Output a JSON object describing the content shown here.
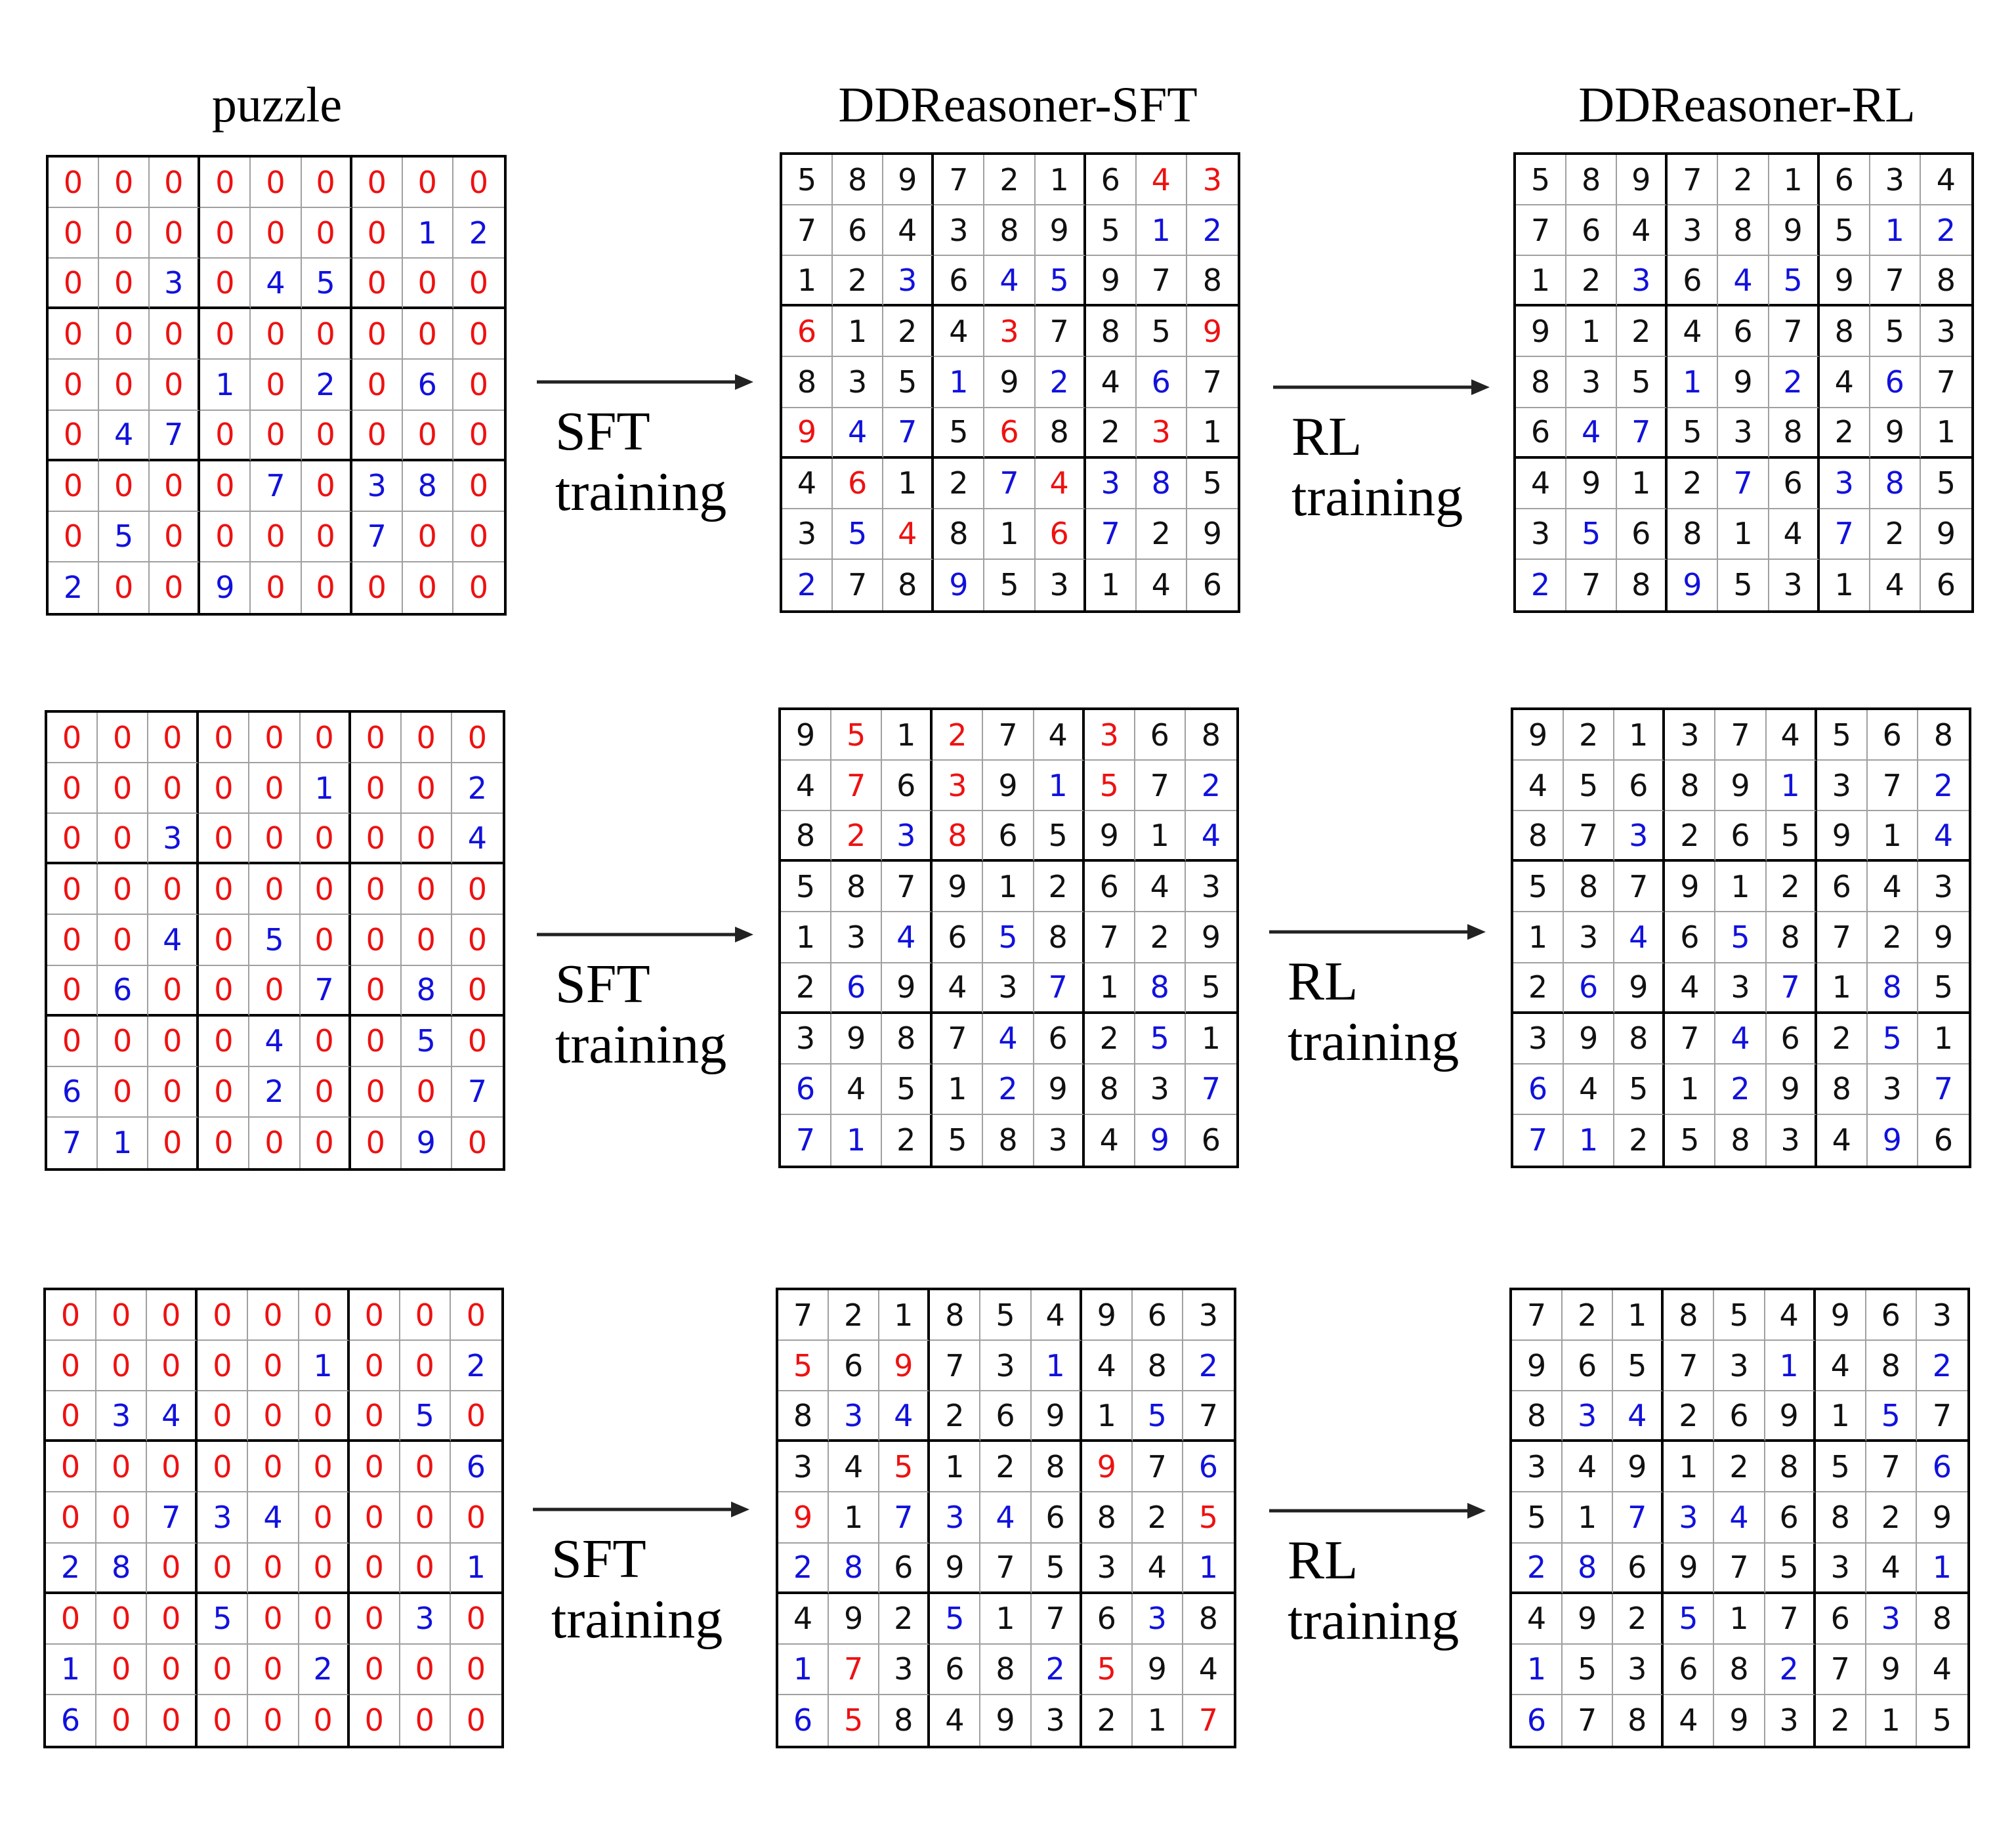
{
  "headers": {
    "puzzle": "puzzle",
    "sft": "DDReasoner-SFT",
    "rl": "DDReasoner-RL"
  },
  "transitions": {
    "sft": {
      "line1": "SFT",
      "line2": "training"
    },
    "rl": {
      "line1": "RL",
      "line2": "training"
    }
  },
  "colors": {
    "red": "#ee1111",
    "blue": "#1111dd",
    "black": "#111111",
    "thin_line": "#a0a0a0",
    "thick_line": "#000000"
  },
  "rows": [
    {
      "puzzle": {
        "digits": [
          "000000000",
          "000000012",
          "003045000",
          "000000000",
          "000102060",
          "047000000",
          "000070380",
          "050000700",
          "200900000"
        ],
        "colors": [
          "rrrrrrrrr",
          "rrrrrrrbb",
          "rrbrbbrrr",
          "rrrrrrrrr",
          "rrrbrbrbr",
          "rbbrrrrrr",
          "rrrrbrbbr",
          "rbrrrrbrr",
          "brrbrrrrr"
        ]
      },
      "sft": {
        "digits": [
          "589721643",
          "764389512",
          "123645978",
          "612437859",
          "835192467",
          "947568231",
          "461274385",
          "354816729",
          "278953146"
        ],
        "colors": [
          "kkkkkkkrr",
          "kkkkkkkbb",
          "kkbkbbkkk",
          "rkkkrkkkr",
          "kkkbkbkbk",
          "rbbkrkkrk",
          "krkkbrbbk",
          "kbrkkrbkk",
          "bkkbkkkkk"
        ]
      },
      "rl": {
        "digits": [
          "589721634",
          "764389512",
          "123645978",
          "912467853",
          "835192467",
          "647538291",
          "491276385",
          "356814729",
          "278953146"
        ],
        "colors": [
          "kkkkkkkkk",
          "kkkkkkkbb",
          "kkbkbbkkk",
          "kkkkkkkkk",
          "kkkbkbkbk",
          "kbbkkkkkk",
          "kkkkbkbbk",
          "kbkkkkbkk",
          "bkkbkkkkk"
        ]
      }
    },
    {
      "puzzle": {
        "digits": [
          "000000000",
          "000001002",
          "003000004",
          "000000000",
          "004050000",
          "060007080",
          "000040050",
          "600020007",
          "710000090"
        ],
        "colors": [
          "rrrrrrrrr",
          "rrrrrbrrb",
          "rrbrrrrrb",
          "rrrrrrrrr",
          "rrbrbrrrr",
          "rbrrrbrbr",
          "rrrrbrrbr",
          "brrrbrrrb",
          "bbrrrrrbr"
        ]
      },
      "sft": {
        "digits": [
          "951274368",
          "476391572",
          "823865914",
          "587912643",
          "134658729",
          "269437185",
          "398746251",
          "645129837",
          "712583496"
        ],
        "colors": [
          "krkrkkrkk",
          "krkrkbrkb",
          "krbrkkkkb",
          "kkkkkkkkk",
          "kkbkbkkkk",
          "kbkkkbkbk",
          "kkkkbkkbk",
          "bkkkbkkkb",
          "bbkkkkkbk"
        ]
      },
      "rl": {
        "digits": [
          "921374568",
          "456891372",
          "873265914",
          "587912643",
          "134658729",
          "269437185",
          "398746251",
          "645129837",
          "712583496"
        ],
        "colors": [
          "kkkkkkkkk",
          "kkkkkbkkb",
          "kkbkkkkkb",
          "kkkkkkkkk",
          "kkbkbkkkk",
          "kbkkkbkbk",
          "kkkkbkkbk",
          "bkkkbkkkb",
          "bbkkkkkbk"
        ]
      }
    },
    {
      "puzzle": {
        "digits": [
          "000000000",
          "000001002",
          "034000050",
          "000000006",
          "007340000",
          "280000001",
          "000500030",
          "100002000",
          "600000000"
        ],
        "colors": [
          "rrrrrrrrr",
          "rrrrrbrrb",
          "rbbrrrrbr",
          "rrrrrrrrb",
          "rrbbbrrrr",
          "bbrrrrrrb",
          "rrrbrrrbr",
          "brrrrbrrr",
          "brrrrrrrr"
        ]
      },
      "sft": {
        "digits": [
          "721854963",
          "569731482",
          "834269157",
          "345128976",
          "917346825",
          "286975341",
          "492517638",
          "173682594",
          "658493217"
        ],
        "colors": [
          "kkkkkkkkk",
          "rkrkkbkkb",
          "kbbkkkkbk",
          "kkrkkkrkb",
          "rkbbbkkkr",
          "bbkkkkkkb",
          "kkkbkkkbk",
          "brkkkbrkk",
          "brkkkkkkr"
        ]
      },
      "rl": {
        "digits": [
          "721854963",
          "965731482",
          "834269157",
          "349128576",
          "517346829",
          "286975341",
          "492517638",
          "153682794",
          "678493215"
        ],
        "colors": [
          "kkkkkkkkk",
          "kkkkkbkkb",
          "kbbkkkkbk",
          "kkkkkkkkb",
          "kkbbbkkkk",
          "bbkkkkkkb",
          "kkkbkkkbk",
          "bkkkkbkkk",
          "bkkkkkkkk"
        ]
      }
    }
  ]
}
